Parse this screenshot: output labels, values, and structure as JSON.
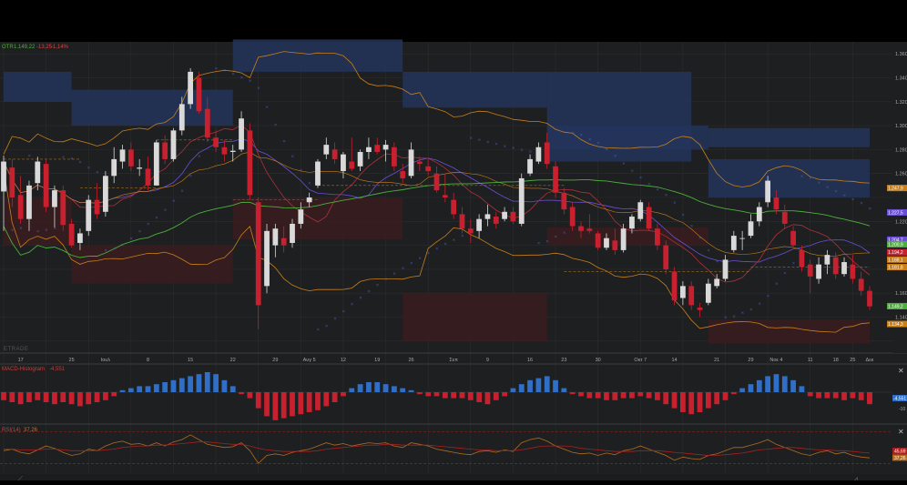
{
  "ticker": {
    "symbol": "OTR",
    "price": "1.149,22",
    "change": "-13,25",
    "change_pct": "-1,14%"
  },
  "watermark": "ETRADE",
  "colors": {
    "background": "#1e1f20",
    "grid": "#2b2d2f",
    "up_candle": "#d9d9d9",
    "down_candle": "#c8202e",
    "sma_green": "#4caf3c",
    "band_orange": "#c97f1a",
    "ma_purple": "#6a4fd6",
    "ma_red": "#b0303a",
    "psar_blue": "#4a5fb8",
    "zone_blue": "#23345a",
    "zone_red": "#3a1c20",
    "macd_up": "#2f6fc8",
    "macd_down": "#c8202e",
    "rsi_red": "#a82020",
    "rsi_orange": "#b06c20",
    "text": "#a8a8a8"
  },
  "chart_data": [
    {
      "type": "candlestick",
      "title": "",
      "ylim": [
        1110,
        1370
      ],
      "y_ticks": [
        "1.360",
        "1.340",
        "1.320",
        "1.300",
        "1.280",
        "1.260",
        "1.220",
        "1.160",
        "1.140"
      ],
      "x_ticks": [
        "17",
        "25",
        "Ιουλ",
        "8",
        "15",
        "22",
        "29",
        "Αυγ 5",
        "12",
        "19",
        "26",
        "Σεπ",
        "9",
        "16",
        "23",
        "30",
        "Οκτ 7",
        "14",
        "21",
        "29",
        "Νοε 4",
        "11",
        "18",
        "25",
        "Δεκ"
      ],
      "price_labels": [
        {
          "text": "1.247,9",
          "kind": "band_orange"
        },
        {
          "text": "1.227,5",
          "kind": "ma_purple"
        },
        {
          "text": "1.204,7",
          "kind": "ma_purple"
        },
        {
          "text": "1.200,9",
          "kind": "sma_green"
        },
        {
          "text": "1.194,2",
          "kind": "ma_red"
        },
        {
          "text": "1.188,1",
          "kind": "band_orange"
        },
        {
          "text": "1.181,8",
          "kind": "band_orange"
        },
        {
          "text": "1.149,2",
          "kind": "sma_green"
        },
        {
          "text": "1.134,3",
          "kind": "band_orange"
        }
      ],
      "candles": [
        {
          "o": 1245,
          "h": 1275,
          "l": 1212,
          "c": 1270
        },
        {
          "o": 1265,
          "h": 1272,
          "l": 1232,
          "c": 1240
        },
        {
          "o": 1242,
          "h": 1258,
          "l": 1218,
          "c": 1222
        },
        {
          "o": 1222,
          "h": 1254,
          "l": 1212,
          "c": 1250
        },
        {
          "o": 1252,
          "h": 1274,
          "l": 1246,
          "c": 1270
        },
        {
          "o": 1268,
          "h": 1272,
          "l": 1228,
          "c": 1232
        },
        {
          "o": 1232,
          "h": 1250,
          "l": 1215,
          "c": 1246
        },
        {
          "o": 1246,
          "h": 1250,
          "l": 1212,
          "c": 1217
        },
        {
          "o": 1218,
          "h": 1222,
          "l": 1198,
          "c": 1200
        },
        {
          "o": 1202,
          "h": 1214,
          "l": 1196,
          "c": 1210
        },
        {
          "o": 1212,
          "h": 1242,
          "l": 1208,
          "c": 1238
        },
        {
          "o": 1238,
          "h": 1252,
          "l": 1222,
          "c": 1226
        },
        {
          "o": 1228,
          "h": 1262,
          "l": 1224,
          "c": 1258
        },
        {
          "o": 1258,
          "h": 1282,
          "l": 1252,
          "c": 1272
        },
        {
          "o": 1270,
          "h": 1284,
          "l": 1264,
          "c": 1280
        },
        {
          "o": 1280,
          "h": 1286,
          "l": 1262,
          "c": 1266
        },
        {
          "o": 1264,
          "h": 1272,
          "l": 1258,
          "c": 1265
        },
        {
          "o": 1264,
          "h": 1274,
          "l": 1246,
          "c": 1250
        },
        {
          "o": 1250,
          "h": 1288,
          "l": 1250,
          "c": 1286
        },
        {
          "o": 1286,
          "h": 1292,
          "l": 1268,
          "c": 1272
        },
        {
          "o": 1272,
          "h": 1298,
          "l": 1270,
          "c": 1296
        },
        {
          "o": 1296,
          "h": 1324,
          "l": 1292,
          "c": 1318
        },
        {
          "o": 1318,
          "h": 1348,
          "l": 1314,
          "c": 1345
        },
        {
          "o": 1340,
          "h": 1345,
          "l": 1310,
          "c": 1312
        },
        {
          "o": 1314,
          "h": 1324,
          "l": 1288,
          "c": 1290
        },
        {
          "o": 1290,
          "h": 1296,
          "l": 1278,
          "c": 1282
        },
        {
          "o": 1282,
          "h": 1288,
          "l": 1270,
          "c": 1276
        },
        {
          "o": 1278,
          "h": 1284,
          "l": 1270,
          "c": 1279
        },
        {
          "o": 1280,
          "h": 1312,
          "l": 1278,
          "c": 1306
        },
        {
          "o": 1296,
          "h": 1302,
          "l": 1238,
          "c": 1242
        },
        {
          "o": 1236,
          "h": 1240,
          "l": 1130,
          "c": 1150
        },
        {
          "o": 1166,
          "h": 1218,
          "l": 1160,
          "c": 1212
        },
        {
          "o": 1200,
          "h": 1218,
          "l": 1190,
          "c": 1214
        },
        {
          "o": 1206,
          "h": 1216,
          "l": 1194,
          "c": 1200
        },
        {
          "o": 1202,
          "h": 1222,
          "l": 1198,
          "c": 1218
        },
        {
          "o": 1218,
          "h": 1236,
          "l": 1214,
          "c": 1230
        },
        {
          "o": 1236,
          "h": 1244,
          "l": 1232,
          "c": 1240
        },
        {
          "o": 1250,
          "h": 1272,
          "l": 1248,
          "c": 1270
        },
        {
          "o": 1276,
          "h": 1290,
          "l": 1272,
          "c": 1284
        },
        {
          "o": 1280,
          "h": 1286,
          "l": 1268,
          "c": 1272
        },
        {
          "o": 1262,
          "h": 1278,
          "l": 1256,
          "c": 1276
        },
        {
          "o": 1270,
          "h": 1290,
          "l": 1262,
          "c": 1264
        },
        {
          "o": 1266,
          "h": 1280,
          "l": 1262,
          "c": 1278
        },
        {
          "o": 1278,
          "h": 1290,
          "l": 1272,
          "c": 1282
        },
        {
          "o": 1284,
          "h": 1290,
          "l": 1276,
          "c": 1278
        },
        {
          "o": 1280,
          "h": 1288,
          "l": 1270,
          "c": 1284
        },
        {
          "o": 1282,
          "h": 1286,
          "l": 1262,
          "c": 1266
        },
        {
          "o": 1262,
          "h": 1268,
          "l": 1252,
          "c": 1256
        },
        {
          "o": 1258,
          "h": 1286,
          "l": 1256,
          "c": 1280
        },
        {
          "o": 1270,
          "h": 1274,
          "l": 1262,
          "c": 1268
        },
        {
          "o": 1266,
          "h": 1272,
          "l": 1258,
          "c": 1262
        },
        {
          "o": 1260,
          "h": 1266,
          "l": 1244,
          "c": 1246
        },
        {
          "o": 1242,
          "h": 1260,
          "l": 1236,
          "c": 1240
        },
        {
          "o": 1238,
          "h": 1244,
          "l": 1222,
          "c": 1226
        },
        {
          "o": 1226,
          "h": 1232,
          "l": 1210,
          "c": 1214
        },
        {
          "o": 1214,
          "h": 1222,
          "l": 1202,
          "c": 1210
        },
        {
          "o": 1212,
          "h": 1226,
          "l": 1206,
          "c": 1222
        },
        {
          "o": 1222,
          "h": 1234,
          "l": 1216,
          "c": 1226
        },
        {
          "o": 1224,
          "h": 1228,
          "l": 1214,
          "c": 1218
        },
        {
          "o": 1222,
          "h": 1232,
          "l": 1220,
          "c": 1228
        },
        {
          "o": 1228,
          "h": 1232,
          "l": 1218,
          "c": 1220
        },
        {
          "o": 1218,
          "h": 1260,
          "l": 1216,
          "c": 1256
        },
        {
          "o": 1260,
          "h": 1276,
          "l": 1258,
          "c": 1272
        },
        {
          "o": 1270,
          "h": 1286,
          "l": 1268,
          "c": 1282
        },
        {
          "o": 1286,
          "h": 1294,
          "l": 1264,
          "c": 1268
        },
        {
          "o": 1266,
          "h": 1270,
          "l": 1240,
          "c": 1244
        },
        {
          "o": 1244,
          "h": 1248,
          "l": 1226,
          "c": 1230
        },
        {
          "o": 1232,
          "h": 1236,
          "l": 1212,
          "c": 1216
        },
        {
          "o": 1216,
          "h": 1220,
          "l": 1206,
          "c": 1212
        },
        {
          "o": 1214,
          "h": 1226,
          "l": 1210,
          "c": 1212
        },
        {
          "o": 1210,
          "h": 1212,
          "l": 1196,
          "c": 1198
        },
        {
          "o": 1198,
          "h": 1210,
          "l": 1196,
          "c": 1206
        },
        {
          "o": 1204,
          "h": 1214,
          "l": 1192,
          "c": 1196
        },
        {
          "o": 1196,
          "h": 1218,
          "l": 1194,
          "c": 1214
        },
        {
          "o": 1214,
          "h": 1226,
          "l": 1210,
          "c": 1224
        },
        {
          "o": 1222,
          "h": 1238,
          "l": 1220,
          "c": 1236
        },
        {
          "o": 1232,
          "h": 1236,
          "l": 1212,
          "c": 1214
        },
        {
          "o": 1214,
          "h": 1218,
          "l": 1196,
          "c": 1200
        },
        {
          "o": 1200,
          "h": 1204,
          "l": 1176,
          "c": 1180
        },
        {
          "o": 1178,
          "h": 1182,
          "l": 1150,
          "c": 1154
        },
        {
          "o": 1156,
          "h": 1170,
          "l": 1150,
          "c": 1166
        },
        {
          "o": 1166,
          "h": 1170,
          "l": 1146,
          "c": 1150
        },
        {
          "o": 1148,
          "h": 1152,
          "l": 1140,
          "c": 1146
        },
        {
          "o": 1152,
          "h": 1172,
          "l": 1150,
          "c": 1168
        },
        {
          "o": 1166,
          "h": 1176,
          "l": 1164,
          "c": 1172
        },
        {
          "o": 1172,
          "h": 1192,
          "l": 1170,
          "c": 1188
        },
        {
          "o": 1196,
          "h": 1212,
          "l": 1194,
          "c": 1208
        },
        {
          "o": 1206,
          "h": 1212,
          "l": 1196,
          "c": 1206
        },
        {
          "o": 1208,
          "h": 1226,
          "l": 1206,
          "c": 1220
        },
        {
          "o": 1220,
          "h": 1236,
          "l": 1216,
          "c": 1232
        },
        {
          "o": 1236,
          "h": 1258,
          "l": 1232,
          "c": 1254
        },
        {
          "o": 1240,
          "h": 1246,
          "l": 1226,
          "c": 1230
        },
        {
          "o": 1228,
          "h": 1234,
          "l": 1214,
          "c": 1218
        },
        {
          "o": 1212,
          "h": 1216,
          "l": 1198,
          "c": 1200
        },
        {
          "o": 1196,
          "h": 1200,
          "l": 1178,
          "c": 1182
        },
        {
          "o": 1184,
          "h": 1188,
          "l": 1160,
          "c": 1174
        },
        {
          "o": 1172,
          "h": 1190,
          "l": 1168,
          "c": 1184
        },
        {
          "o": 1184,
          "h": 1196,
          "l": 1176,
          "c": 1192
        },
        {
          "o": 1190,
          "h": 1194,
          "l": 1172,
          "c": 1176
        },
        {
          "o": 1176,
          "h": 1190,
          "l": 1174,
          "c": 1186
        },
        {
          "o": 1184,
          "h": 1192,
          "l": 1168,
          "c": 1172
        },
        {
          "o": 1172,
          "h": 1178,
          "l": 1158,
          "c": 1162
        },
        {
          "o": 1162,
          "h": 1166,
          "l": 1146,
          "c": 1149
        }
      ]
    },
    {
      "type": "bar",
      "title": "MACD-Histogram",
      "value_label": "-4,551",
      "y_ticks": [
        "-4,551",
        "-10"
      ],
      "values": [
        -4,
        -5,
        -6,
        -5,
        -4,
        -5,
        -6,
        -5,
        -6,
        -7,
        -6,
        -5,
        -4,
        -2,
        1,
        2,
        3,
        3,
        4,
        5,
        6,
        7,
        8,
        9,
        10,
        9,
        6,
        3,
        -1,
        -3,
        -8,
        -12,
        -14,
        -13,
        -12,
        -11,
        -10,
        -9,
        -7,
        -5,
        -2,
        2,
        4,
        5,
        5,
        4,
        3,
        2,
        1,
        -1,
        -2,
        -2,
        -3,
        -3,
        -3,
        -4,
        -5,
        -6,
        -4,
        -2,
        2,
        4,
        6,
        7,
        8,
        6,
        2,
        -1,
        -2,
        -3,
        -3,
        -4,
        -4,
        -3,
        -3,
        -2,
        -3,
        -4,
        -6,
        -8,
        -10,
        -11,
        -10,
        -8,
        -6,
        -4,
        -1,
        2,
        4,
        6,
        8,
        9,
        8,
        6,
        3,
        -2,
        -3,
        -3,
        -3,
        -4,
        -3,
        -4,
        -5,
        -5,
        -6
      ]
    },
    {
      "type": "line",
      "title": "RSI(14)",
      "value_label": "37,26",
      "y_ticks": [
        "45,69",
        "37,26"
      ],
      "series": [
        {
          "values": [
            46,
            48,
            44,
            42,
            47,
            52,
            49,
            44,
            40,
            42,
            48,
            46,
            52,
            56,
            58,
            54,
            55,
            52,
            56,
            52,
            57,
            60,
            66,
            60,
            54,
            52,
            50,
            51,
            56,
            46,
            30,
            40,
            42,
            40,
            44,
            46,
            48,
            52,
            56,
            53,
            55,
            52,
            54,
            56,
            55,
            56,
            52,
            50,
            56,
            54,
            52,
            48,
            46,
            44,
            42,
            41,
            45,
            46,
            44,
            47,
            45,
            56,
            60,
            62,
            58,
            52,
            48,
            44,
            42,
            43,
            40,
            43,
            41,
            46,
            48,
            52,
            48,
            44,
            40,
            34,
            38,
            36,
            35,
            40,
            42,
            46,
            50,
            50,
            53,
            56,
            60,
            54,
            50,
            46,
            42,
            40,
            44,
            46,
            42,
            44,
            40,
            38,
            37
          ]
        },
        {
          "values": [
            48,
            48,
            47,
            47,
            47,
            48,
            48,
            47,
            46,
            46,
            46,
            46,
            47,
            48,
            50,
            51,
            52,
            52,
            53,
            53,
            54,
            55,
            56,
            57,
            57,
            56,
            55,
            54,
            54,
            52,
            49,
            47,
            46,
            45,
            45,
            45,
            45,
            46,
            48,
            49,
            50,
            51,
            52,
            53,
            53,
            54,
            54,
            53,
            53,
            53,
            53,
            52,
            51,
            50,
            49,
            48,
            47,
            47,
            46,
            46,
            46,
            47,
            49,
            51,
            52,
            52,
            52,
            51,
            49,
            48,
            47,
            46,
            45,
            45,
            45,
            46,
            46,
            46,
            45,
            44,
            43,
            42,
            41,
            40,
            40,
            41,
            42,
            43,
            45,
            47,
            48,
            49,
            50,
            50,
            49,
            48,
            47,
            47,
            46,
            46,
            45,
            44,
            43
          ]
        }
      ]
    }
  ]
}
